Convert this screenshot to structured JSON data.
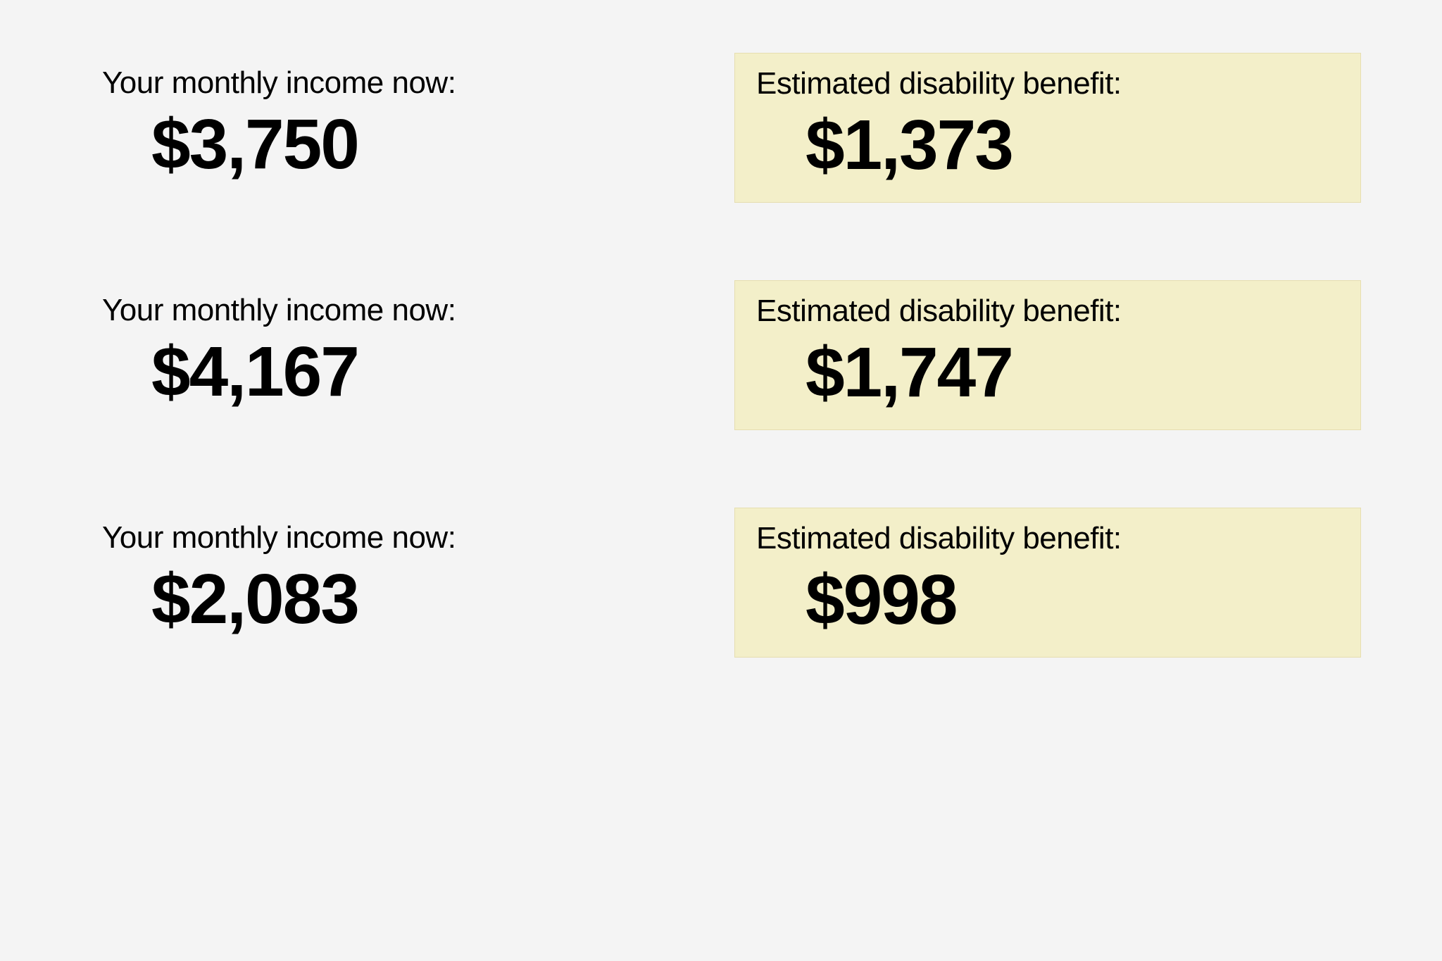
{
  "type": "infographic",
  "background_color": "#f4f4f4",
  "text_color": "#000000",
  "highlight_background": "#f3efc9",
  "highlight_border": "#e6deb0",
  "label_fontsize": 44,
  "label_fontweight": 400,
  "value_fontsize": 100,
  "value_fontweight": 800,
  "rows": [
    {
      "income": {
        "label": "Your monthly income now:",
        "value": "$3,750"
      },
      "benefit": {
        "label": "Estimated disability benefit:",
        "value": "$1,373"
      }
    },
    {
      "income": {
        "label": "Your monthly income now:",
        "value": "$4,167"
      },
      "benefit": {
        "label": "Estimated disability benefit:",
        "value": "$1,747"
      }
    },
    {
      "income": {
        "label": "Your monthly income now:",
        "value": "$2,083"
      },
      "benefit": {
        "label": "Estimated disability benefit:",
        "value": "$998"
      }
    }
  ]
}
